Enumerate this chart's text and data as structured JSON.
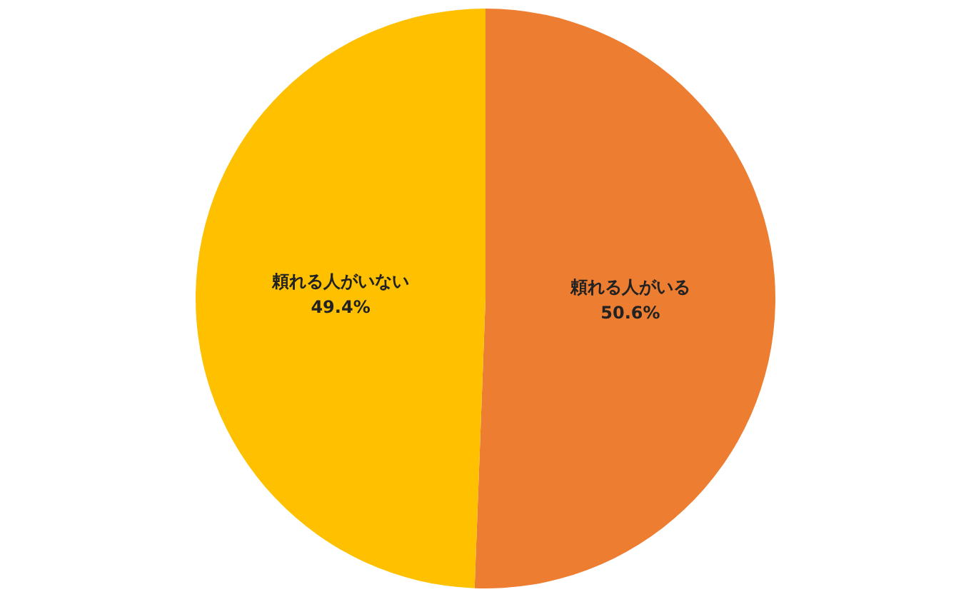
{
  "chart_data": {
    "type": "pie",
    "categories": [
      "頼れる人がいる",
      "頼れる人がいない"
    ],
    "values": [
      50.6,
      49.4
    ],
    "colors": [
      "#ed7d31",
      "#ffc000"
    ],
    "value_labels": [
      "50.6%",
      "49.4%"
    ],
    "legend": false
  }
}
